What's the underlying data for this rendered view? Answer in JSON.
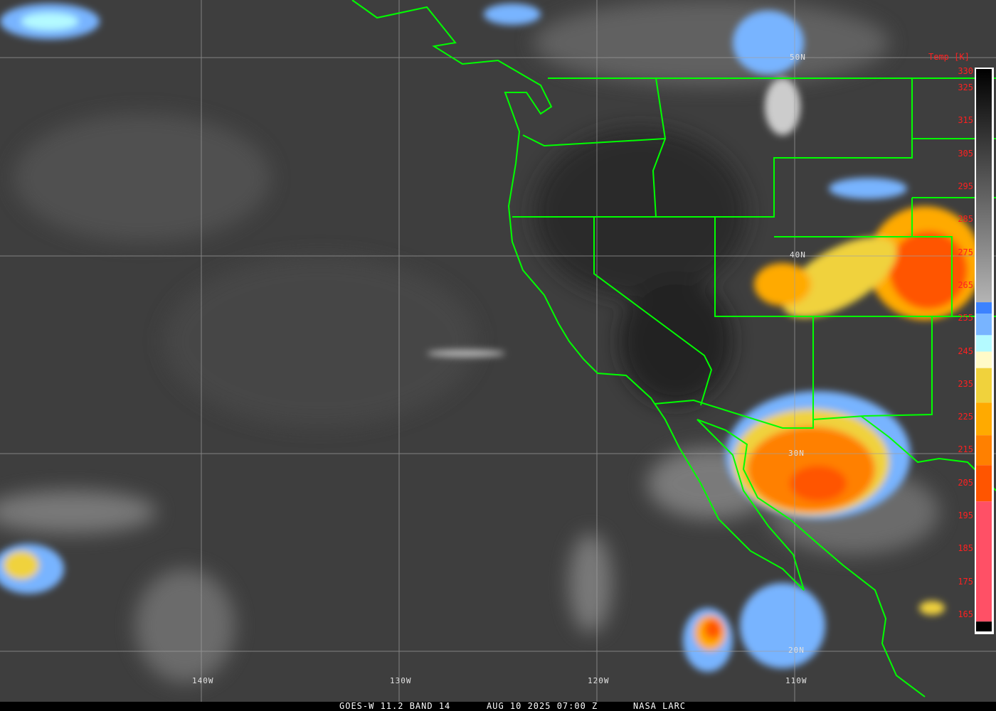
{
  "footer": {
    "satellite": "GOES-W 11.2 BAND 14",
    "datetime": "AUG 10 2025 07:00 Z",
    "source": "NASA LARC"
  },
  "colorbar": {
    "title": "Temp [K]",
    "range": [
      160,
      332
    ],
    "ticks": [
      "330",
      "325",
      "315",
      "305",
      "295",
      "285",
      "275",
      "265",
      "255",
      "245",
      "235",
      "225",
      "215",
      "205",
      "195",
      "185",
      "175",
      "165"
    ],
    "segments": [
      {
        "from": 332,
        "to": 260,
        "color": "gradient-black-to-lightgray"
      },
      {
        "from": 260,
        "to": 256.5,
        "color": "#3c82ff"
      },
      {
        "from": 256.5,
        "to": 250,
        "color": "#78b4ff"
      },
      {
        "from": 250,
        "to": 245,
        "color": "#b4faff"
      },
      {
        "from": 245,
        "to": 240,
        "color": "#fffac8"
      },
      {
        "from": 240,
        "to": 229.5,
        "color": "#f0d23c"
      },
      {
        "from": 229.5,
        "to": 219.6,
        "color": "#ffaa00"
      },
      {
        "from": 219.6,
        "to": 210.5,
        "color": "#ff8000"
      },
      {
        "from": 210.5,
        "to": 199.5,
        "color": "#ff5500"
      },
      {
        "from": 199.5,
        "to": 163,
        "color": "#ff5066"
      },
      {
        "from": 163,
        "to": 160,
        "color": "#000000"
      }
    ]
  },
  "grid": {
    "latitudes": [
      "50N",
      "40N",
      "30N",
      "20N"
    ],
    "longitudes": [
      "140W",
      "130W",
      "120W",
      "110W"
    ]
  },
  "colors": {
    "borders": "#00ff00",
    "grid": "#a0a0a0",
    "labels": "#ff2020"
  }
}
